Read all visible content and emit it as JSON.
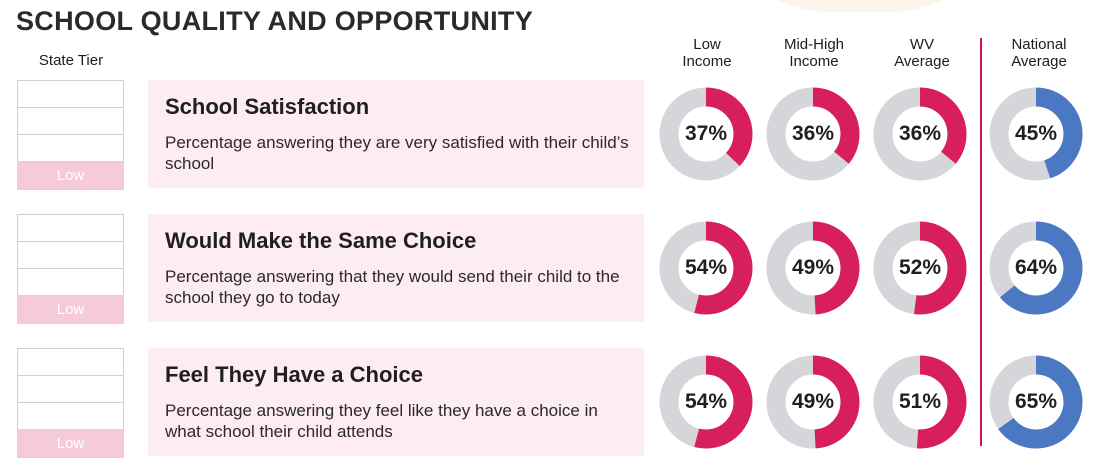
{
  "title": "SCHOOL QUALITY AND OPPORTUNITY",
  "tier_header": "State Tier",
  "columns": [
    {
      "line1": "Low",
      "line2": "Income",
      "color": "#d61f5c"
    },
    {
      "line1": "Mid-High",
      "line2": "Income",
      "color": "#d61f5c"
    },
    {
      "line1": "WV",
      "line2": "Average",
      "color": "#d61f5c"
    },
    {
      "line1": "National",
      "line2": "Average",
      "color": "#4a78c2"
    }
  ],
  "track_color": "#d4d6da",
  "chart_data": {
    "type": "donut",
    "categories": [
      "Low Income",
      "Mid-High Income",
      "WV Average",
      "National Average"
    ],
    "metrics": [
      {
        "title": "School Satisfaction",
        "description": "Percentage answering they are very satisfied with their child’s school",
        "tier": "Low",
        "values": [
          37,
          36,
          36,
          45
        ],
        "labels": [
          "37%",
          "36%",
          "36%",
          "45%"
        ]
      },
      {
        "title": "Would Make the Same Choice",
        "description": "Percentage answering that they would send their child to the school they go to today",
        "tier": "Low",
        "values": [
          54,
          49,
          52,
          64
        ],
        "labels": [
          "54%",
          "49%",
          "52%",
          "64%"
        ]
      },
      {
        "title": "Feel They Have a Choice",
        "description": "Percentage answering they feel like they have a choice in what school their child attends",
        "tier": "Low",
        "values": [
          54,
          49,
          51,
          65
        ],
        "labels": [
          "54%",
          "49%",
          "51%",
          "65%"
        ]
      }
    ]
  }
}
